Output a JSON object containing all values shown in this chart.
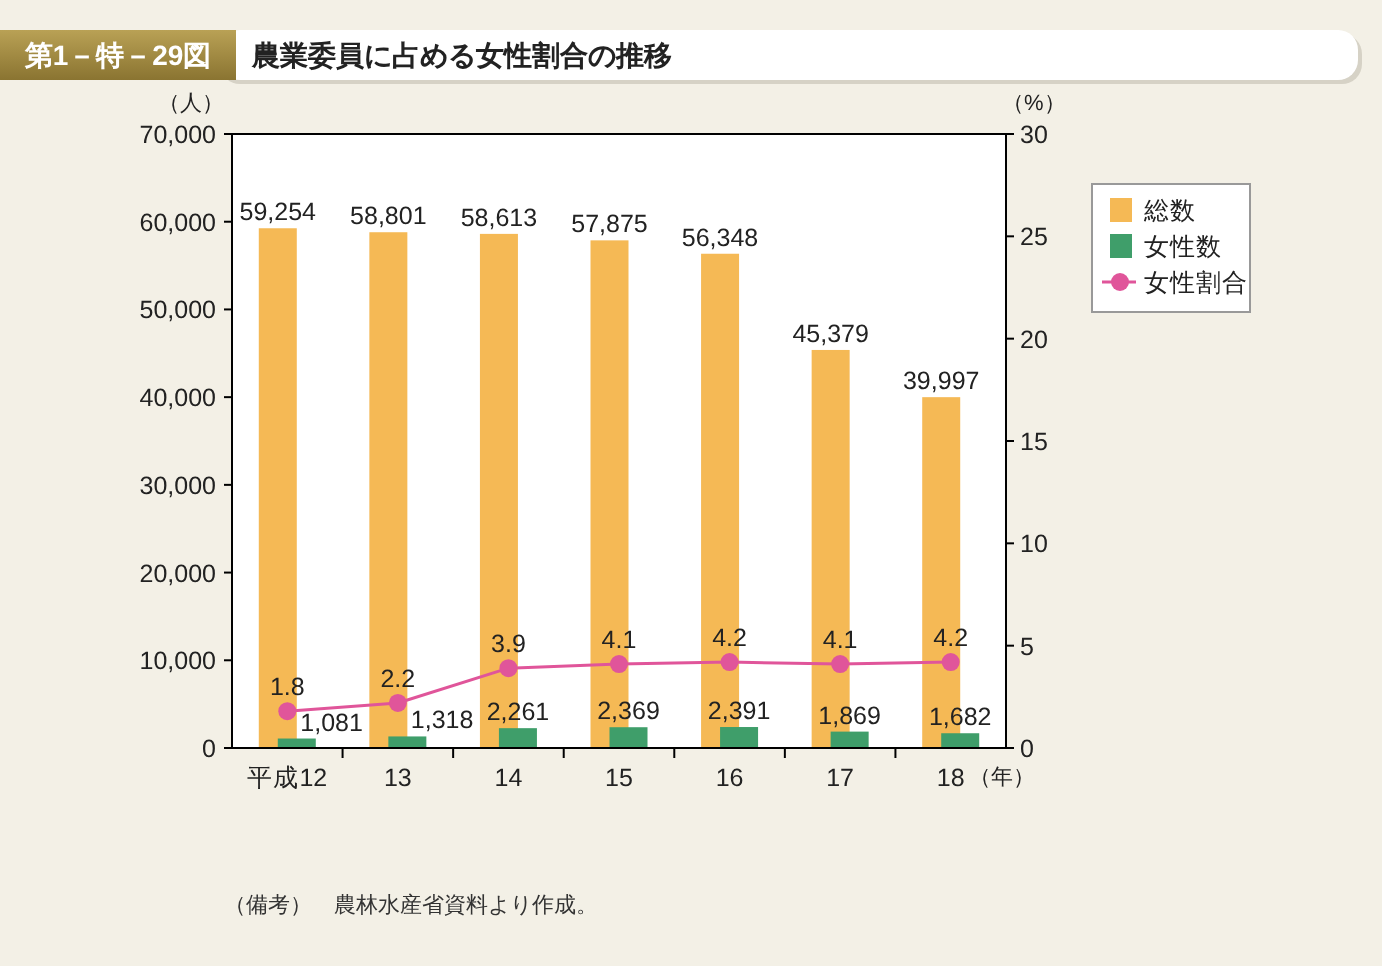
{
  "chart_data": {
    "type": "bar",
    "subtitle": "第1－特－29図",
    "title": "農業委員に占める女性割合の推移",
    "xlabel": "（年）",
    "ylabel": "（人）",
    "y2label": "（%）",
    "categories": [
      "平成12",
      "13",
      "14",
      "15",
      "16",
      "17",
      "18"
    ],
    "series": [
      {
        "name": "総数",
        "color": "#f5b955",
        "values": [
          59254,
          58801,
          58613,
          57875,
          56348,
          45379,
          39997
        ],
        "value_labels": [
          "59,254",
          "58,801",
          "58,613",
          "57,875",
          "56,348",
          "45,379",
          "39,997"
        ]
      },
      {
        "name": "女性数",
        "color": "#3f9e6a",
        "values": [
          1081,
          1318,
          2261,
          2369,
          2391,
          1869,
          1682
        ],
        "value_labels": [
          "1,081",
          "1,318",
          "2,261",
          "2,369",
          "2,391",
          "1,869",
          "1,682"
        ]
      },
      {
        "name": "女性割合",
        "type": "line",
        "axis": "y2",
        "color": "#e0559a",
        "marker": "circle",
        "values": [
          1.8,
          2.2,
          3.9,
          4.1,
          4.2,
          4.1,
          4.2
        ]
      }
    ],
    "ylim": [
      0,
      70000
    ],
    "yticks": [
      0,
      {
        "value": 10000,
        "label": "10,000"
      },
      {
        "value": 20000,
        "label": "20,000"
      },
      {
        "value": 30000,
        "label": "30,000"
      },
      {
        "value": 40000,
        "label": "40,000"
      },
      {
        "value": 50000,
        "label": "50,000"
      },
      {
        "value": 60000,
        "label": "60,000"
      },
      {
        "value": 70000,
        "label": "70,000"
      }
    ],
    "y2lim": [
      0,
      30
    ],
    "y2ticks": [
      0,
      5,
      10,
      15,
      20,
      25,
      30
    ],
    "data_labels": true,
    "legend": "top right",
    "annotations": [
      "（備考）　農林水産省資料より作成。"
    ]
  }
}
